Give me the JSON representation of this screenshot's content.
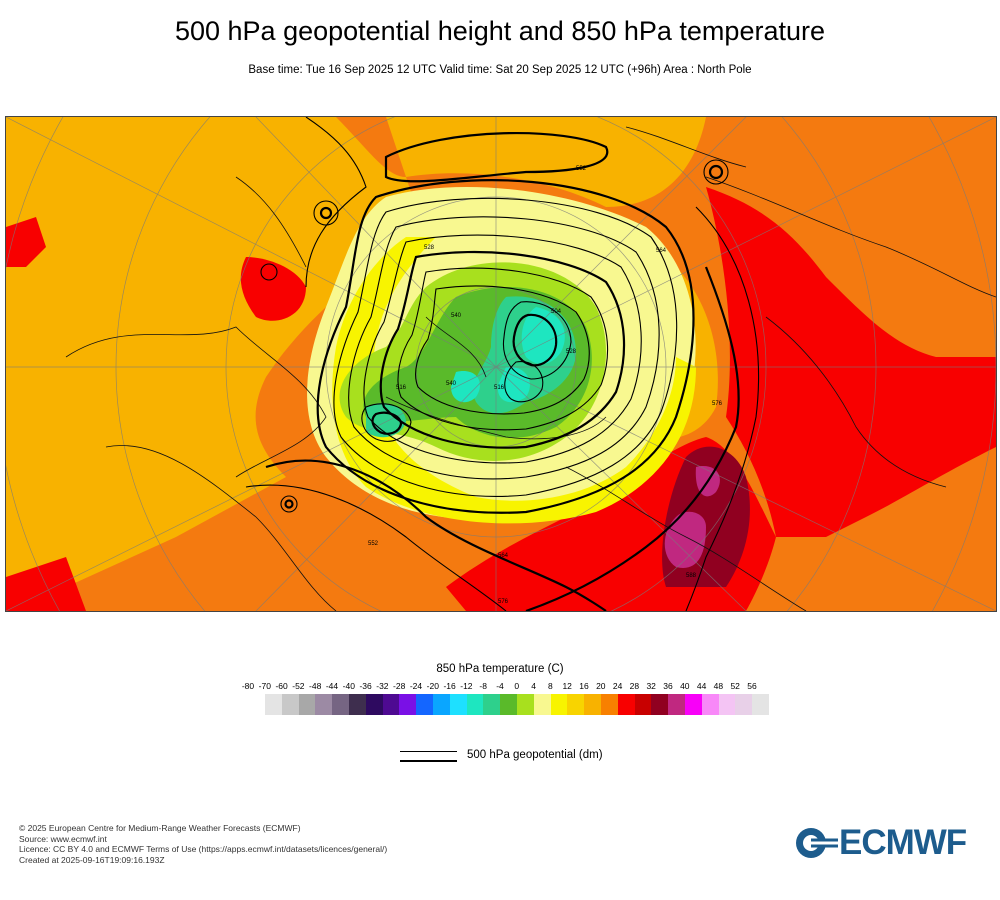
{
  "header": {
    "title": "500 hPa geopotential height and 850 hPa temperature",
    "subtitle": "Base time: Tue 16 Sep 2025 12 UTC Valid time: Sat 20 Sep 2025 12 UTC (+96h) Area : North Pole"
  },
  "map": {
    "projection": "polar stereographic",
    "area": "North Pole",
    "contour_labels": [
      "552",
      "564",
      "576",
      "528",
      "540",
      "516",
      "504",
      "516",
      "528",
      "552",
      "576",
      "564",
      "540",
      "588"
    ]
  },
  "legend": {
    "temperature_title": "850 hPa temperature (C)",
    "ticks": [
      "-80",
      "-70",
      "-60",
      "-52",
      "-48",
      "-44",
      "-40",
      "-36",
      "-32",
      "-28",
      "-24",
      "-20",
      "-16",
      "-12",
      "-8",
      "-4",
      "0",
      "4",
      "8",
      "12",
      "16",
      "20",
      "24",
      "28",
      "32",
      "36",
      "40",
      "44",
      "48",
      "52",
      "56"
    ],
    "colors": [
      "#e4e4e4",
      "#c8c8c8",
      "#a8a8a8",
      "#9c8aa4",
      "#766583",
      "#3e2e4e",
      "#2e0a60",
      "#4e0a92",
      "#7a10e6",
      "#1466ff",
      "#0aa6ff",
      "#1ee0ff",
      "#1ee6c0",
      "#2ed08c",
      "#5aba2a",
      "#a8e01e",
      "#f8f890",
      "#f8f400",
      "#f8d400",
      "#f8b200",
      "#f88000",
      "#f80000",
      "#c80000",
      "#900020",
      "#c02880",
      "#f800f8",
      "#f888f8",
      "#f4c4f4",
      "#e8d0e8",
      "#e4e4e4"
    ],
    "contour_title": "500 hPa geopotential (dm)"
  },
  "footer": {
    "copyright": "© 2025 European Centre for Medium-Range Weather Forecasts (ECMWF)",
    "source": "Source: www.ecmwf.int",
    "licence": "Licence: CC BY 4.0 and ECMWF Terms of Use (https://apps.ecmwf.int/datasets/licences/general/)",
    "created": "Created at 2025-09-16T19:09:16.193Z",
    "logo": "ECMWF"
  }
}
